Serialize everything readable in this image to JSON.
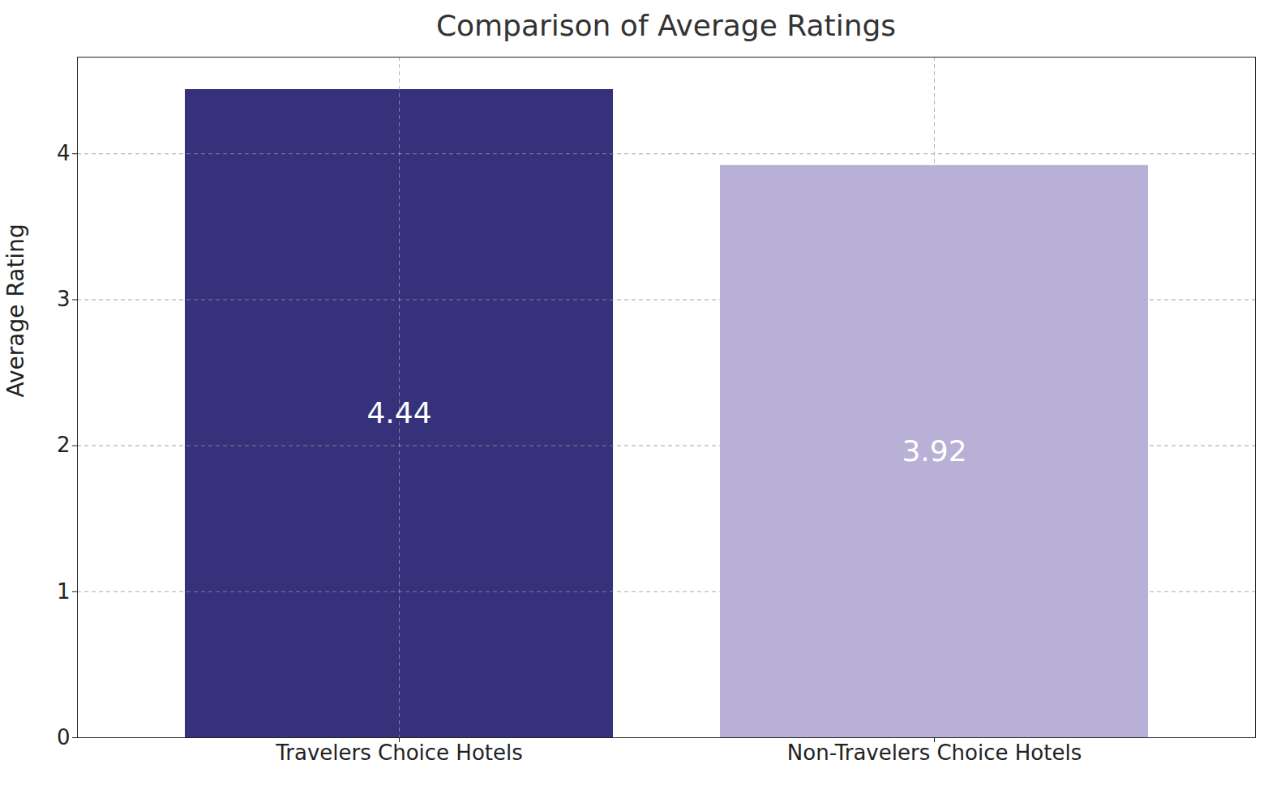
{
  "chart_data": {
    "type": "bar",
    "title": "Comparison of Average Ratings",
    "y_label": "Average Rating",
    "categories": [
      "Travelers Choice Hotels",
      "Non-Travelers Choice Hotels"
    ],
    "values": [
      4.44,
      3.92
    ],
    "colors": [
      "#35317a",
      "#b8b0d6"
    ],
    "ylim": [
      0,
      4.662
    ],
    "yticks": [
      0,
      1,
      2,
      3,
      4
    ],
    "grid": true,
    "data_labels": true
  }
}
